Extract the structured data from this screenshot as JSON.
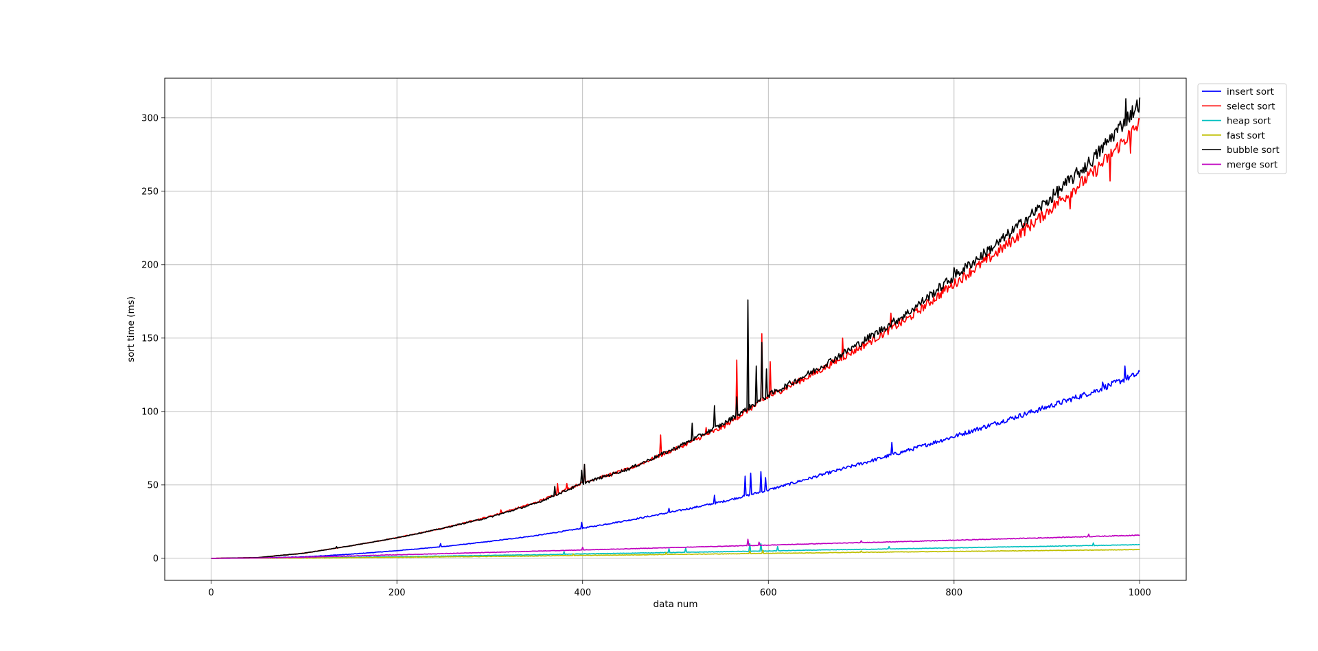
{
  "chart_data": {
    "type": "line",
    "title": "",
    "xlabel": "data num",
    "ylabel": "sort time (ms)",
    "xlim": [
      -50,
      1050
    ],
    "ylim": [
      -15,
      327
    ],
    "x_ticks": [
      0,
      200,
      400,
      600,
      800,
      1000
    ],
    "y_ticks": [
      0,
      50,
      100,
      150,
      200,
      250,
      300
    ],
    "grid": true,
    "legend_position": "outside top-right",
    "x_start": 0,
    "x_end": 1000,
    "series": [
      {
        "name": "insert sort",
        "color": "#0000ff",
        "points": [
          [
            0,
            0
          ],
          [
            50,
            0.2
          ],
          [
            100,
            1.0
          ],
          [
            150,
            2.8
          ],
          [
            200,
            5.2
          ],
          [
            250,
            8.0
          ],
          [
            300,
            11.5
          ],
          [
            350,
            15.5
          ],
          [
            400,
            20.5
          ],
          [
            450,
            26.0
          ],
          [
            500,
            32.0
          ],
          [
            550,
            38.5
          ],
          [
            575,
            42.5
          ],
          [
            600,
            46.5
          ],
          [
            650,
            55.5
          ],
          [
            700,
            64.5
          ],
          [
            750,
            73.5
          ],
          [
            800,
            83.0
          ],
          [
            850,
            93.0
          ],
          [
            900,
            103.0
          ],
          [
            950,
            113.5
          ],
          [
            1000,
            126.0
          ]
        ],
        "spikes": [
          [
            247,
            10
          ],
          [
            399,
            24.5
          ],
          [
            473,
            28.5
          ],
          [
            493,
            34
          ],
          [
            542,
            43
          ],
          [
            575,
            56
          ],
          [
            581,
            58
          ],
          [
            592,
            59
          ],
          [
            597,
            55
          ],
          [
            733,
            79
          ],
          [
            960,
            120
          ],
          [
            984,
            131
          ]
        ]
      },
      {
        "name": "select sort",
        "color": "#ff0000",
        "points": [
          [
            0,
            0
          ],
          [
            50,
            0.5
          ],
          [
            100,
            3.5
          ],
          [
            150,
            8.5
          ],
          [
            200,
            14.0
          ],
          [
            250,
            20.5
          ],
          [
            300,
            28.5
          ],
          [
            350,
            38.0
          ],
          [
            400,
            51.5
          ],
          [
            450,
            61.0
          ],
          [
            500,
            74.5
          ],
          [
            550,
            89.0
          ],
          [
            600,
            110.0
          ],
          [
            650,
            126.0
          ],
          [
            700,
            144.0
          ],
          [
            750,
            163.0
          ],
          [
            800,
            187.0
          ],
          [
            850,
            210.0
          ],
          [
            900,
            236.0
          ],
          [
            950,
            262.5
          ],
          [
            1000,
            296.0
          ]
        ],
        "spikes": [
          [
            312,
            33
          ],
          [
            373,
            51
          ],
          [
            383,
            51
          ],
          [
            402,
            64
          ],
          [
            431,
            56
          ],
          [
            484,
            84
          ],
          [
            533,
            89
          ],
          [
            566,
            135
          ],
          [
            593,
            153
          ],
          [
            602,
            134
          ],
          [
            680,
            150
          ],
          [
            732,
            167
          ],
          [
            789,
            185
          ],
          [
            875,
            228
          ],
          [
            910,
            243
          ],
          [
            925,
            238
          ],
          [
            968,
            257
          ],
          [
            990,
            276
          ]
        ]
      },
      {
        "name": "heap sort",
        "color": "#00bfbf",
        "points": [
          [
            0,
            0
          ],
          [
            50,
            0.1
          ],
          [
            100,
            0.3
          ],
          [
            150,
            0.7
          ],
          [
            200,
            1.1
          ],
          [
            250,
            1.5
          ],
          [
            300,
            2.0
          ],
          [
            350,
            2.4
          ],
          [
            400,
            3.0
          ],
          [
            450,
            3.5
          ],
          [
            500,
            4.0
          ],
          [
            550,
            4.5
          ],
          [
            600,
            5.0
          ],
          [
            650,
            5.6
          ],
          [
            700,
            6.1
          ],
          [
            750,
            6.6
          ],
          [
            800,
            7.1
          ],
          [
            850,
            7.7
          ],
          [
            900,
            8.2
          ],
          [
            950,
            8.7
          ],
          [
            1000,
            9.3
          ]
        ],
        "spikes": [
          [
            380,
            4.5
          ],
          [
            493,
            6.5
          ],
          [
            511,
            7
          ],
          [
            580,
            10
          ],
          [
            592,
            10
          ],
          [
            610,
            8
          ],
          [
            730,
            8
          ],
          [
            950,
            10.5
          ]
        ]
      },
      {
        "name": "fast sort",
        "color": "#bfbf00",
        "points": [
          [
            0,
            0
          ],
          [
            50,
            0.1
          ],
          [
            100,
            0.2
          ],
          [
            150,
            0.4
          ],
          [
            200,
            0.7
          ],
          [
            250,
            1.0
          ],
          [
            300,
            1.3
          ],
          [
            350,
            1.6
          ],
          [
            400,
            2.0
          ],
          [
            450,
            2.3
          ],
          [
            500,
            2.7
          ],
          [
            550,
            3.0
          ],
          [
            600,
            3.4
          ],
          [
            650,
            3.7
          ],
          [
            700,
            4.1
          ],
          [
            750,
            4.4
          ],
          [
            800,
            4.7
          ],
          [
            850,
            5.0
          ],
          [
            900,
            5.3
          ],
          [
            950,
            5.6
          ],
          [
            1000,
            6.0
          ]
        ],
        "spikes": [
          [
            390,
            3
          ],
          [
            490,
            4
          ],
          [
            580,
            5
          ],
          [
            594,
            5.5
          ],
          [
            700,
            5
          ]
        ]
      },
      {
        "name": "bubble sort",
        "color": "#000000",
        "points": [
          [
            0,
            0
          ],
          [
            50,
            0.5
          ],
          [
            100,
            3.5
          ],
          [
            150,
            8.5
          ],
          [
            200,
            14.0
          ],
          [
            250,
            20.5
          ],
          [
            300,
            28.0
          ],
          [
            350,
            37.5
          ],
          [
            400,
            51.0
          ],
          [
            450,
            61.0
          ],
          [
            500,
            75.0
          ],
          [
            550,
            91.0
          ],
          [
            600,
            111.0
          ],
          [
            650,
            128.0
          ],
          [
            700,
            147.0
          ],
          [
            750,
            167.0
          ],
          [
            800,
            192.0
          ],
          [
            850,
            216.0
          ],
          [
            900,
            243.0
          ],
          [
            950,
            272.0
          ],
          [
            1000,
            310.0
          ]
        ],
        "spikes": [
          [
            135,
            8
          ],
          [
            370,
            49
          ],
          [
            399,
            60
          ],
          [
            402,
            64
          ],
          [
            518,
            92
          ],
          [
            542,
            104
          ],
          [
            566,
            110
          ],
          [
            578,
            176
          ],
          [
            587,
            131
          ],
          [
            593,
            147
          ],
          [
            598,
            129
          ],
          [
            800,
            198
          ],
          [
            877,
            232
          ],
          [
            985,
            313
          ]
        ]
      },
      {
        "name": "merge sort",
        "color": "#bf00bf",
        "points": [
          [
            0,
            0
          ],
          [
            50,
            0.2
          ],
          [
            100,
            0.8
          ],
          [
            150,
            1.6
          ],
          [
            200,
            2.4
          ],
          [
            250,
            3.2
          ],
          [
            300,
            4.0
          ],
          [
            350,
            4.9
          ],
          [
            400,
            5.7
          ],
          [
            450,
            6.5
          ],
          [
            500,
            7.4
          ],
          [
            550,
            8.2
          ],
          [
            600,
            9.0
          ],
          [
            650,
            9.9
          ],
          [
            700,
            10.7
          ],
          [
            750,
            11.5
          ],
          [
            800,
            12.3
          ],
          [
            850,
            13.2
          ],
          [
            900,
            14.0
          ],
          [
            950,
            14.9
          ],
          [
            1000,
            15.8
          ]
        ],
        "spikes": [
          [
            400,
            7.5
          ],
          [
            578,
            13
          ],
          [
            590,
            11
          ],
          [
            700,
            12
          ],
          [
            945,
            16.5
          ]
        ]
      }
    ]
  }
}
